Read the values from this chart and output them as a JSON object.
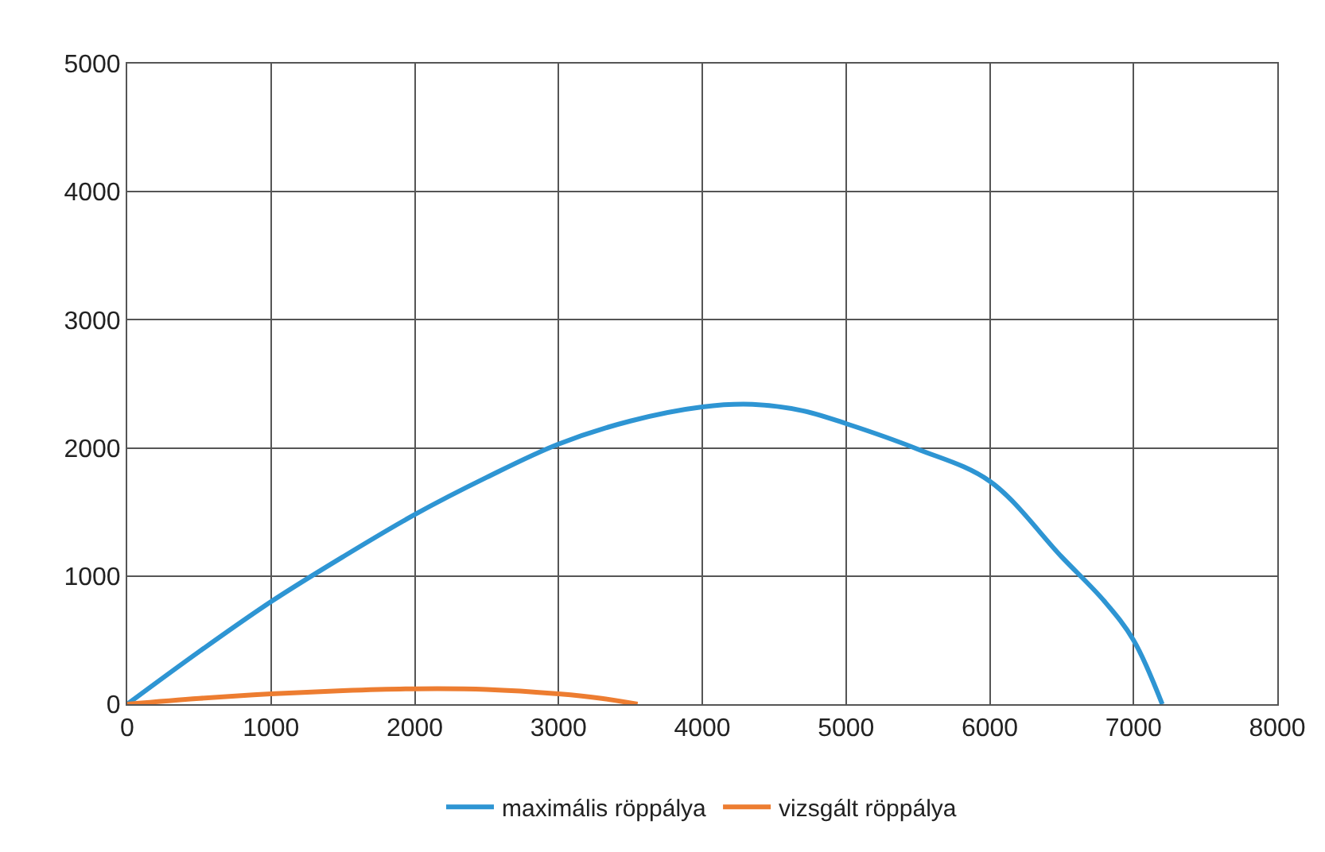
{
  "chart_data": {
    "type": "line",
    "xlim": [
      0,
      8000
    ],
    "xticks": [
      0,
      1000,
      2000,
      3000,
      4000,
      5000,
      6000,
      7000,
      8000
    ],
    "ylim": [
      0,
      5000
    ],
    "yticks": [
      0,
      1000,
      2000,
      3000,
      4000,
      5000
    ],
    "grid": true,
    "legend": "bottom",
    "marker": "none",
    "line_style": "solid",
    "series": [
      {
        "name": "maximális röppálya",
        "color": "#2e95d3",
        "x": [
          0,
          500,
          1000,
          1500,
          2000,
          2500,
          3000,
          3500,
          4000,
          4350,
          4700,
          5000,
          5500,
          6000,
          6500,
          6800,
          7000,
          7200
        ],
        "values": [
          0,
          410,
          800,
          1150,
          1480,
          1770,
          2030,
          2210,
          2320,
          2340,
          2290,
          2190,
          1990,
          1740,
          1150,
          800,
          500,
          0
        ]
      },
      {
        "name": "vizsgált röppálya",
        "color": "#ed7d31",
        "x": [
          0,
          500,
          1000,
          1500,
          2000,
          2500,
          3000,
          3300,
          3550
        ],
        "values": [
          0,
          45,
          80,
          105,
          120,
          115,
          80,
          45,
          0
        ]
      }
    ]
  }
}
